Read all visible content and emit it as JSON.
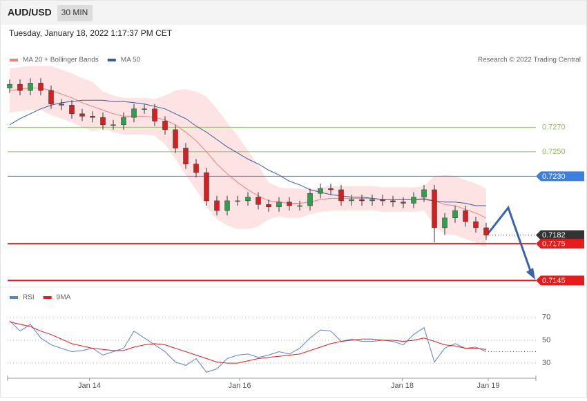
{
  "header": {
    "symbol": "AUD/USD",
    "timeframe": "30 MIN",
    "timestamp": "Tuesday, January 18, 2022 1:17:37 PM CET"
  },
  "credit": "Research © 2022 Trading Central",
  "chart_data": [
    {
      "type": "candlestick",
      "up_color": "#2e9e4f",
      "down_color": "#d42020",
      "xlim": [
        -0.2,
        50.8
      ],
      "ylim": [
        0.7139,
        0.7322
      ],
      "open": [
        0.7302,
        0.7305,
        0.73,
        0.7306,
        0.73,
        0.7289,
        0.7288,
        0.7281,
        0.7279,
        0.7278,
        0.7272,
        0.7272,
        0.7278,
        0.7285,
        0.7285,
        0.7275,
        0.7268,
        0.7253,
        0.724,
        0.7233,
        0.721,
        0.7202,
        0.721,
        0.721,
        0.7213,
        0.7207,
        0.7205,
        0.7209,
        0.7206,
        0.7206,
        0.7216,
        0.722,
        0.7219,
        0.721,
        0.7211,
        0.721,
        0.7211,
        0.721,
        0.7209,
        0.7208,
        0.7213,
        0.7219,
        0.7188,
        0.7196,
        0.7202,
        0.7193,
        0.7188
      ],
      "high": [
        0.7309,
        0.7309,
        0.731,
        0.731,
        0.7304,
        0.7293,
        0.7292,
        0.7285,
        0.7283,
        0.7282,
        0.7276,
        0.7282,
        0.7289,
        0.7289,
        0.7289,
        0.7279,
        0.7272,
        0.7257,
        0.7244,
        0.7237,
        0.7214,
        0.7214,
        0.7214,
        0.7217,
        0.7217,
        0.7211,
        0.7213,
        0.7213,
        0.721,
        0.722,
        0.7224,
        0.7224,
        0.7223,
        0.7215,
        0.7215,
        0.7215,
        0.7215,
        0.7214,
        0.7213,
        0.7217,
        0.7223,
        0.7223,
        0.72,
        0.7206,
        0.7206,
        0.7197,
        0.7192
      ],
      "low": [
        0.7298,
        0.7296,
        0.7296,
        0.7296,
        0.7285,
        0.7284,
        0.7277,
        0.7275,
        0.7274,
        0.7268,
        0.7268,
        0.7268,
        0.7274,
        0.7281,
        0.7271,
        0.7264,
        0.7249,
        0.7236,
        0.7229,
        0.7206,
        0.7198,
        0.7198,
        0.7206,
        0.7206,
        0.7203,
        0.7201,
        0.7201,
        0.7202,
        0.7202,
        0.7202,
        0.7212,
        0.7215,
        0.7206,
        0.7206,
        0.7206,
        0.7206,
        0.7206,
        0.7205,
        0.7204,
        0.7204,
        0.7209,
        0.7176,
        0.7182,
        0.7192,
        0.7189,
        0.7184,
        0.7178
      ],
      "close": [
        0.7305,
        0.73,
        0.7306,
        0.73,
        0.7289,
        0.7288,
        0.7281,
        0.7279,
        0.7278,
        0.7272,
        0.7272,
        0.7278,
        0.7285,
        0.7285,
        0.7275,
        0.7268,
        0.7253,
        0.724,
        0.7233,
        0.721,
        0.7202,
        0.721,
        0.721,
        0.7213,
        0.7207,
        0.7205,
        0.7209,
        0.7206,
        0.7206,
        0.7216,
        0.722,
        0.7219,
        0.721,
        0.7211,
        0.721,
        0.7211,
        0.721,
        0.7209,
        0.7208,
        0.7213,
        0.7219,
        0.7188,
        0.7196,
        0.7202,
        0.7193,
        0.7188,
        0.7182
      ],
      "series": [
        {
          "name": "MA 20 + Bollinger Bands",
          "color": "#f08080",
          "band_color": "#fde3e3",
          "values": [
            0.73,
            0.7301,
            0.7302,
            0.7302,
            0.73,
            0.7297,
            0.7294,
            0.729,
            0.7287,
            0.7284,
            0.7281,
            0.7279,
            0.7279,
            0.7279,
            0.7278,
            0.7276,
            0.7272,
            0.7266,
            0.7259,
            0.725,
            0.724,
            0.7232,
            0.7225,
            0.7219,
            0.7214,
            0.721,
            0.7209,
            0.7208,
            0.7208,
            0.7209,
            0.7211,
            0.7212,
            0.7212,
            0.7212,
            0.7212,
            0.7212,
            0.7211,
            0.7211,
            0.7211,
            0.7211,
            0.7212,
            0.721,
            0.7207,
            0.7206,
            0.7203,
            0.72,
            0.7196
          ],
          "upper": [
            0.7318,
            0.7319,
            0.732,
            0.732,
            0.732,
            0.7317,
            0.7314,
            0.731,
            0.7307,
            0.7299,
            0.7296,
            0.7294,
            0.7294,
            0.7294,
            0.7293,
            0.7296,
            0.73,
            0.7301,
            0.7299,
            0.7295,
            0.7285,
            0.7274,
            0.7263,
            0.7251,
            0.7239,
            0.7225,
            0.7221,
            0.722,
            0.722,
            0.7219,
            0.7221,
            0.7222,
            0.7222,
            0.7222,
            0.7222,
            0.7222,
            0.7221,
            0.7221,
            0.7221,
            0.7221,
            0.7222,
            0.723,
            0.7231,
            0.723,
            0.7227,
            0.7224,
            0.722
          ],
          "lower": [
            0.7282,
            0.7283,
            0.7284,
            0.7284,
            0.728,
            0.7277,
            0.7274,
            0.727,
            0.7267,
            0.7269,
            0.7266,
            0.7264,
            0.7264,
            0.7264,
            0.7263,
            0.7256,
            0.7244,
            0.7231,
            0.7219,
            0.7205,
            0.7195,
            0.719,
            0.7187,
            0.7187,
            0.7189,
            0.7195,
            0.7197,
            0.7196,
            0.7196,
            0.7199,
            0.7201,
            0.7202,
            0.7202,
            0.7202,
            0.7202,
            0.7202,
            0.7201,
            0.7201,
            0.7201,
            0.7201,
            0.7202,
            0.719,
            0.7183,
            0.7182,
            0.7179,
            0.7176,
            0.7172
          ]
        },
        {
          "name": "MA 50",
          "color": "#3a5a9e",
          "values": [
            0.7272,
            0.7277,
            0.7281,
            0.7285,
            0.7288,
            0.729,
            0.7291,
            0.7292,
            0.7292,
            0.7292,
            0.7291,
            0.7291,
            0.729,
            0.7289,
            0.7287,
            0.7285,
            0.7281,
            0.7277,
            0.7271,
            0.7266,
            0.726,
            0.7254,
            0.7249,
            0.7244,
            0.724,
            0.7235,
            0.7231,
            0.7226,
            0.7223,
            0.7219,
            0.7217,
            0.7215,
            0.7214,
            0.7213,
            0.7213,
            0.7212,
            0.7211,
            0.7211,
            0.7211,
            0.7211,
            0.7211,
            0.721,
            0.7209,
            0.7209,
            0.7208,
            0.7206,
            0.7206
          ]
        }
      ],
      "levels": [
        {
          "value": 0.727,
          "label": "0.7270",
          "color": "#8fbf5a",
          "label_box": false,
          "dash": false,
          "width": 1
        },
        {
          "value": 0.725,
          "label": "0.7250",
          "color": "#8fbf5a",
          "label_box": false,
          "dash": false,
          "width": 1
        },
        {
          "value": 0.723,
          "label": "0.7230",
          "color": "#3d7fe0",
          "label_box": true,
          "dash": false,
          "width": 1
        },
        {
          "value": 0.7182,
          "label": "0.7182",
          "color": "#333333",
          "label_box": true,
          "dash": true,
          "width": 1
        },
        {
          "value": 0.7175,
          "label": "0.7175",
          "color": "#e51c1c",
          "label_box": true,
          "dash": false,
          "width": 2
        },
        {
          "value": 0.7145,
          "label": "0.7145",
          "color": "#e51c1c",
          "label_box": true,
          "dash": false,
          "width": 2
        }
      ]
    },
    {
      "type": "line",
      "xlim": [
        -0.2,
        50.8
      ],
      "ylim": [
        18,
        88
      ],
      "yticks": [
        30,
        50,
        70
      ],
      "xticks": [
        {
          "value": 7.7,
          "label": "Jan 14"
        },
        {
          "value": 22.2,
          "label": "Jan 16"
        },
        {
          "value": 37.9,
          "label": "Jan 18"
        },
        {
          "value": 46.2,
          "label": "Jan 19"
        }
      ],
      "series": [
        {
          "name": "RSI",
          "color": "#5b7fd6",
          "values": [
            67,
            58,
            64,
            52,
            46,
            43,
            40,
            41,
            43,
            37,
            40,
            43,
            58,
            52,
            46,
            40,
            31,
            28,
            34,
            22,
            25,
            34,
            37,
            38,
            35,
            37,
            40,
            38,
            43,
            52,
            59,
            58,
            49,
            51,
            49,
            49,
            50,
            49,
            46,
            55,
            61,
            31,
            43,
            47,
            43,
            44,
            40
          ]
        },
        {
          "name": "9MA",
          "color": "#e51c1c",
          "values": [
            66,
            64,
            62,
            58,
            55,
            51,
            47,
            45,
            43,
            42,
            41,
            41,
            44,
            46,
            47,
            46,
            43,
            40,
            37,
            34,
            31,
            30,
            30,
            32,
            34,
            35,
            36,
            37,
            38,
            41,
            44,
            47,
            49,
            50,
            51,
            51,
            50,
            50,
            49,
            50,
            52,
            49,
            46,
            45,
            43,
            43,
            42
          ]
        }
      ]
    }
  ]
}
